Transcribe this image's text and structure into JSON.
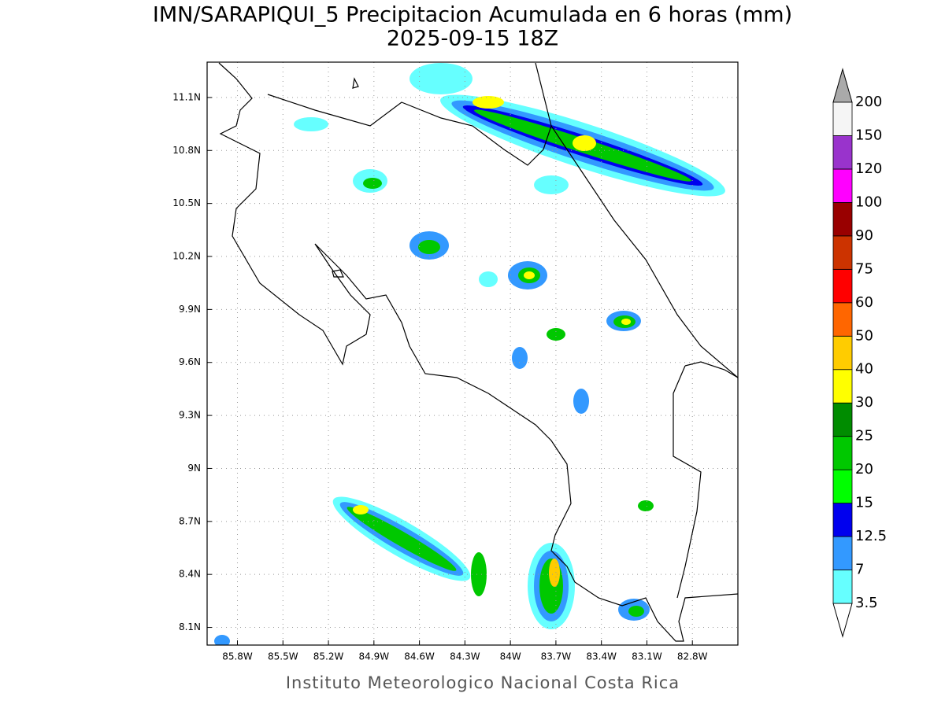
{
  "title": "IMN/SARAPIQUI_5 Precipitacion Acumulada en 6 horas (mm)",
  "subtitle": "2025-09-15 18Z",
  "footer": "Instituto Meteorologico Nacional Costa Rica",
  "map": {
    "xlim": [
      -86.0,
      -82.5
    ],
    "ylim": [
      8.0,
      11.3
    ],
    "grid": true,
    "xticks": [
      {
        "value": -85.8,
        "label": "85.8W"
      },
      {
        "value": -85.5,
        "label": "85.5W"
      },
      {
        "value": -85.2,
        "label": "85.2W"
      },
      {
        "value": -84.9,
        "label": "84.9W"
      },
      {
        "value": -84.6,
        "label": "84.6W"
      },
      {
        "value": -84.3,
        "label": "84.3W"
      },
      {
        "value": -84.0,
        "label": "84W"
      },
      {
        "value": -83.7,
        "label": "83.7W"
      },
      {
        "value": -83.4,
        "label": "83.4W"
      },
      {
        "value": -83.1,
        "label": "83.1W"
      },
      {
        "value": -82.8,
        "label": "82.8W"
      }
    ],
    "yticks": [
      {
        "value": 8.1,
        "label": "8.1N"
      },
      {
        "value": 8.4,
        "label": "8.4N"
      },
      {
        "value": 8.7,
        "label": "8.7N"
      },
      {
        "value": 9.0,
        "label": "9N"
      },
      {
        "value": 9.3,
        "label": "9.3N"
      },
      {
        "value": 9.6,
        "label": "9.6N"
      },
      {
        "value": 9.9,
        "label": "9.9N"
      },
      {
        "value": 10.2,
        "label": "10.2N"
      },
      {
        "value": 10.5,
        "label": "10.5N"
      },
      {
        "value": 10.8,
        "label": "10.8N"
      },
      {
        "value": 11.1,
        "label": "11.1N"
      }
    ]
  },
  "colorbar": {
    "levels": [
      3.5,
      7,
      12.5,
      15,
      20,
      25,
      30,
      40,
      50,
      60,
      75,
      90,
      100,
      120,
      150,
      200
    ],
    "colors": [
      "#66ffff",
      "#3399ff",
      "#0000ee",
      "#00ff00",
      "#00c800",
      "#008c00",
      "#ffff00",
      "#ffcc00",
      "#ff6600",
      "#ff0000",
      "#cc3300",
      "#990000",
      "#ff00ff",
      "#9933cc",
      "#f5f5f5"
    ],
    "over_color": "#aaaaaa",
    "under_color": "#ffffff"
  }
}
